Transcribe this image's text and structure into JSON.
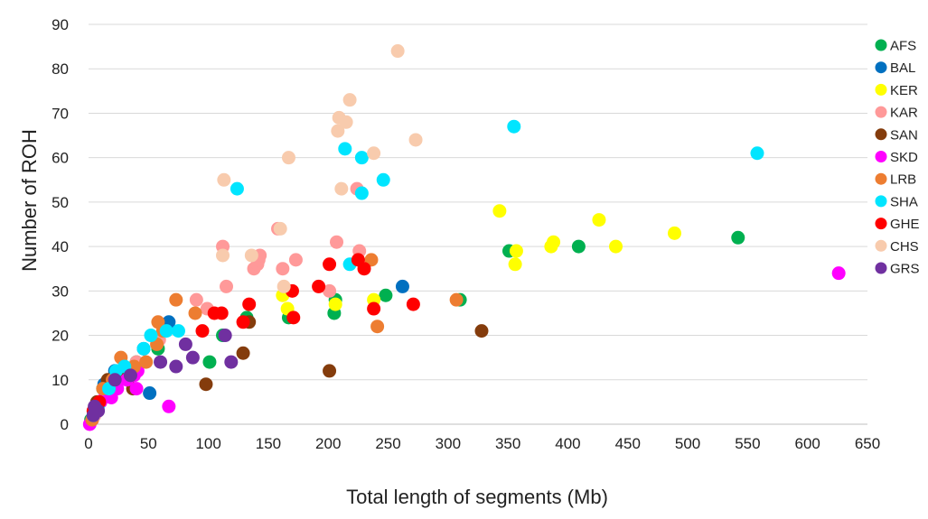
{
  "chart_data": {
    "type": "scatter",
    "title": "",
    "xlabel": "Total length of segments (Mb)",
    "ylabel": "Number of ROH",
    "xlim": [
      0,
      650
    ],
    "ylim": [
      0,
      90
    ],
    "xticks": [
      0,
      50,
      100,
      150,
      200,
      250,
      300,
      350,
      400,
      450,
      500,
      550,
      600,
      650
    ],
    "yticks": [
      0,
      10,
      20,
      30,
      40,
      50,
      60,
      70,
      80,
      90
    ],
    "grid": "horizontal",
    "legend_position": "right",
    "series": [
      {
        "name": "AFS",
        "color": "#00b050",
        "points": [
          [
            2,
            1
          ],
          [
            5,
            3
          ],
          [
            8,
            5
          ],
          [
            12,
            8
          ],
          [
            20,
            10
          ],
          [
            30,
            12
          ],
          [
            40,
            14
          ],
          [
            58,
            17
          ],
          [
            101,
            14
          ],
          [
            112,
            20
          ],
          [
            132,
            24
          ],
          [
            167,
            24
          ],
          [
            205,
            25
          ],
          [
            206,
            28
          ],
          [
            248,
            29
          ],
          [
            310,
            28
          ],
          [
            351,
            39
          ],
          [
            409,
            40
          ],
          [
            542,
            42
          ]
        ]
      },
      {
        "name": "BAL",
        "color": "#0070c0",
        "points": [
          [
            5,
            3
          ],
          [
            13,
            9
          ],
          [
            22,
            12
          ],
          [
            46,
            17
          ],
          [
            51,
            7
          ],
          [
            67,
            23
          ],
          [
            262,
            31
          ]
        ]
      },
      {
        "name": "KER",
        "color": "#ffff00",
        "points": [
          [
            162,
            29
          ],
          [
            166,
            26
          ],
          [
            206,
            27
          ],
          [
            238,
            28
          ],
          [
            343,
            48
          ],
          [
            356,
            36
          ],
          [
            357,
            39
          ],
          [
            386,
            40
          ],
          [
            388,
            41
          ],
          [
            426,
            46
          ],
          [
            440,
            40
          ],
          [
            489,
            43
          ]
        ]
      },
      {
        "name": "KAR",
        "color": "#ff9999",
        "points": [
          [
            5,
            2
          ],
          [
            10,
            5
          ],
          [
            15,
            7
          ],
          [
            20,
            10
          ],
          [
            25,
            12
          ],
          [
            40,
            14
          ],
          [
            59,
            19
          ],
          [
            90,
            28
          ],
          [
            99,
            26
          ],
          [
            112,
            40
          ],
          [
            115,
            31
          ],
          [
            138,
            35
          ],
          [
            141,
            36
          ],
          [
            142,
            37
          ],
          [
            143,
            38
          ],
          [
            158,
            44
          ],
          [
            162,
            35
          ],
          [
            173,
            37
          ],
          [
            201,
            30
          ],
          [
            207,
            41
          ],
          [
            224,
            53
          ],
          [
            226,
            39
          ]
        ]
      },
      {
        "name": "SAN",
        "color": "#843c0c",
        "points": [
          [
            7,
            5
          ],
          [
            16,
            10
          ],
          [
            30,
            11
          ],
          [
            37,
            8
          ],
          [
            98,
            9
          ],
          [
            129,
            16
          ],
          [
            134,
            23
          ],
          [
            201,
            12
          ],
          [
            328,
            21
          ]
        ]
      },
      {
        "name": "SKD",
        "color": "#ff00ff",
        "points": [
          [
            1,
            0
          ],
          [
            3,
            1
          ],
          [
            6,
            3
          ],
          [
            10,
            5
          ],
          [
            14,
            7
          ],
          [
            19,
            6
          ],
          [
            24,
            8
          ],
          [
            32,
            10
          ],
          [
            38,
            11
          ],
          [
            41,
            12
          ],
          [
            40,
            8
          ],
          [
            67,
            4
          ],
          [
            626,
            34
          ]
        ]
      },
      {
        "name": "LRB",
        "color": "#ed7d31",
        "points": [
          [
            3,
            1
          ],
          [
            6,
            4
          ],
          [
            12,
            8
          ],
          [
            20,
            10
          ],
          [
            27,
            15
          ],
          [
            38,
            13
          ],
          [
            48,
            14
          ],
          [
            57,
            18
          ],
          [
            58,
            23
          ],
          [
            62,
            21
          ],
          [
            73,
            28
          ],
          [
            89,
            25
          ],
          [
            236,
            37
          ],
          [
            241,
            22
          ],
          [
            307,
            28
          ]
        ]
      },
      {
        "name": "SHA",
        "color": "#00e5ff",
        "points": [
          [
            4,
            2
          ],
          [
            8,
            4
          ],
          [
            17,
            8
          ],
          [
            23,
            12
          ],
          [
            30,
            13
          ],
          [
            46,
            17
          ],
          [
            52,
            20
          ],
          [
            65,
            21
          ],
          [
            75,
            21
          ],
          [
            124,
            53
          ],
          [
            214,
            62
          ],
          [
            218,
            36
          ],
          [
            228,
            60
          ],
          [
            228,
            52
          ],
          [
            246,
            55
          ],
          [
            355,
            67
          ],
          [
            558,
            61
          ]
        ]
      },
      {
        "name": "GHE",
        "color": "#ff0000",
        "points": [
          [
            4,
            3
          ],
          [
            9,
            5
          ],
          [
            95,
            21
          ],
          [
            105,
            25
          ],
          [
            111,
            25
          ],
          [
            129,
            23
          ],
          [
            134,
            27
          ],
          [
            170,
            30
          ],
          [
            171,
            24
          ],
          [
            192,
            31
          ],
          [
            201,
            36
          ],
          [
            225,
            37
          ],
          [
            230,
            35
          ],
          [
            238,
            26
          ],
          [
            271,
            27
          ]
        ]
      },
      {
        "name": "CHS",
        "color": "#f8cbad",
        "points": [
          [
            112,
            38
          ],
          [
            113,
            55
          ],
          [
            136,
            38
          ],
          [
            160,
            44
          ],
          [
            163,
            31
          ],
          [
            167,
            60
          ],
          [
            208,
            66
          ],
          [
            209,
            69
          ],
          [
            211,
            53
          ],
          [
            215,
            68
          ],
          [
            218,
            73
          ],
          [
            238,
            61
          ],
          [
            258,
            84
          ],
          [
            273,
            64
          ]
        ]
      },
      {
        "name": "GRS",
        "color": "#7030a0",
        "points": [
          [
            4,
            2
          ],
          [
            5,
            4
          ],
          [
            8,
            3
          ],
          [
            22,
            10
          ],
          [
            35,
            11
          ],
          [
            60,
            14
          ],
          [
            73,
            13
          ],
          [
            81,
            18
          ],
          [
            87,
            15
          ],
          [
            114,
            20
          ],
          [
            119,
            14
          ]
        ]
      }
    ]
  }
}
